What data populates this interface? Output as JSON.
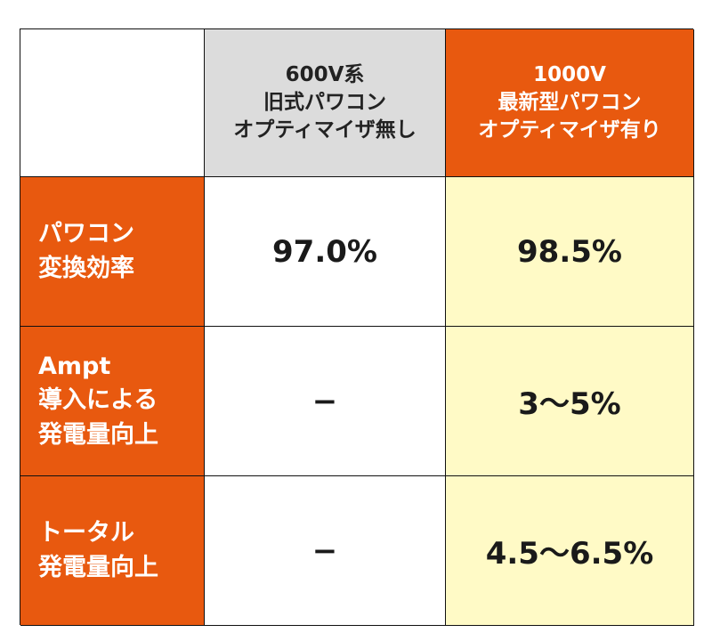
{
  "table": {
    "corner": "",
    "headers": [
      "600V系\n旧式パワコン\nオプティマイザ無し",
      "1000V\n最新型パワコン\nオプティマイザ有り"
    ],
    "rows": [
      {
        "label": "パワコン\n変換効率",
        "old": "97.0%",
        "new": "98.5%"
      },
      {
        "label": "Ampt\n導入による\n発電量向上",
        "old": "−",
        "new": "3〜5%"
      },
      {
        "label": "トータル\n発電量向上",
        "old": "−",
        "new": "4.5〜6.5%"
      }
    ],
    "colors": {
      "accent_orange": "#e8590f",
      "header_gray": "#dcdcdc",
      "highlight_yellow": "#fffac6"
    }
  }
}
